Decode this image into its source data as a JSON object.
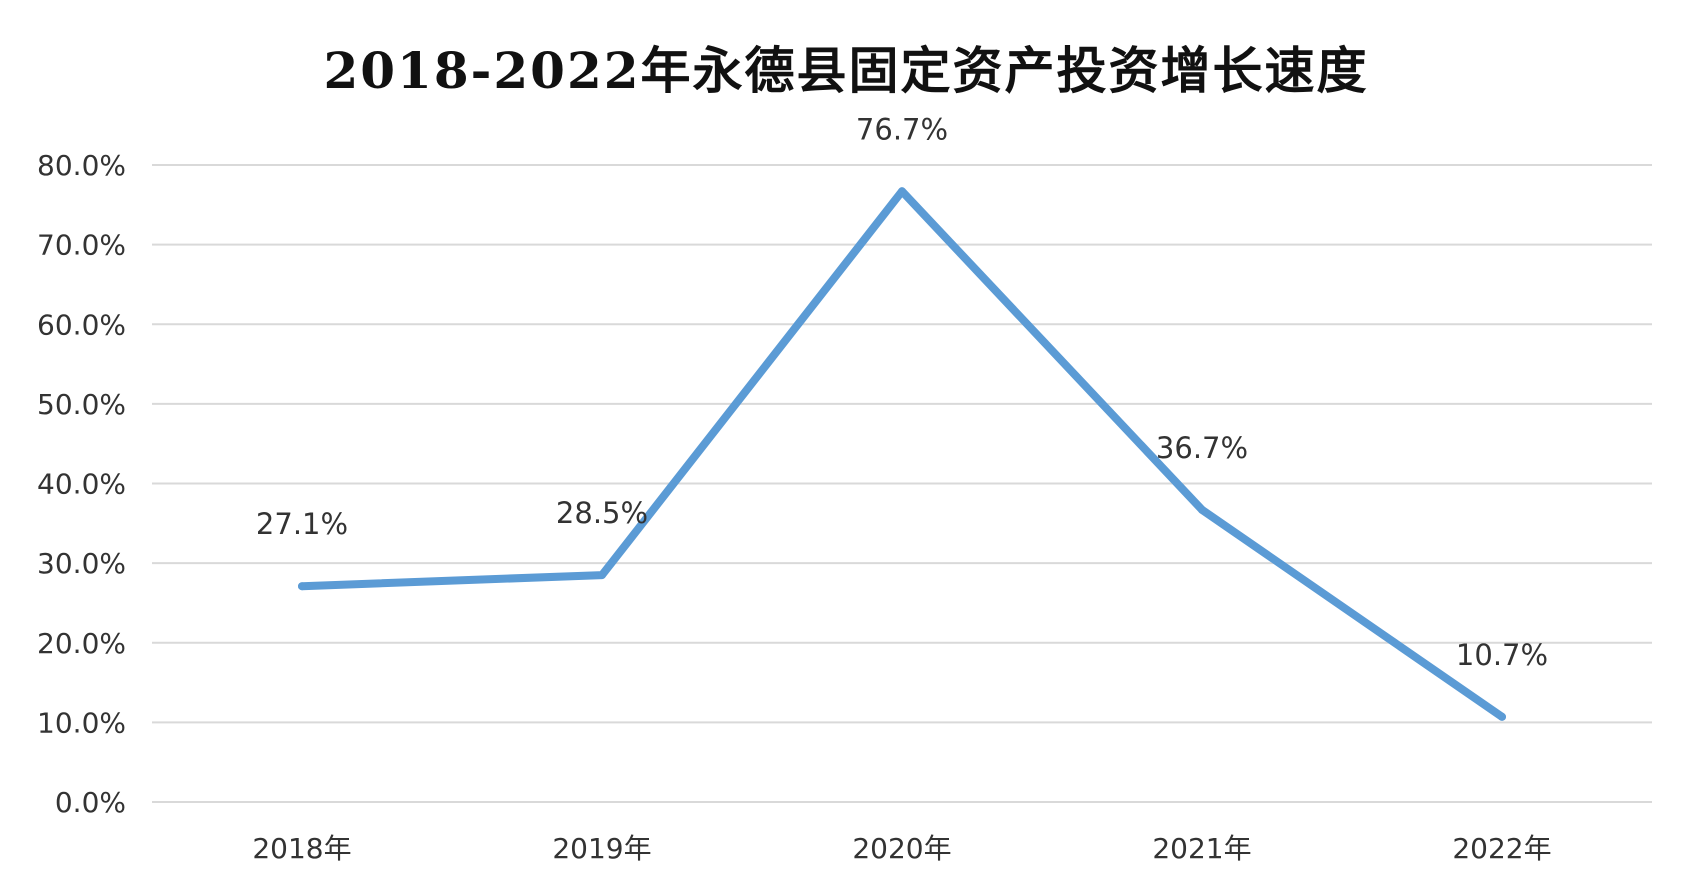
{
  "chart_data": {
    "type": "line",
    "title": "2018-2022年永德县固定资产投资增长速度",
    "categories": [
      "2018年",
      "2019年",
      "2020年",
      "2021年",
      "2022年"
    ],
    "series": [
      {
        "values": [
          27.1,
          28.5,
          76.7,
          36.7,
          10.7
        ],
        "labels": [
          "27.1%",
          "28.5%",
          "76.7%",
          "36.7%",
          "10.7%"
        ],
        "color": "#5b9bd5"
      }
    ],
    "yticks": [
      "0.0%",
      "10.0%",
      "20.0%",
      "30.0%",
      "40.0%",
      "50.0%",
      "60.0%",
      "70.0%",
      "80.0%"
    ],
    "ylim": [
      0,
      80
    ],
    "xlabel": "",
    "ylabel": "",
    "grid": true,
    "legend": "none",
    "gridline_color": "#d9d9d9",
    "text_color": "#333333"
  }
}
